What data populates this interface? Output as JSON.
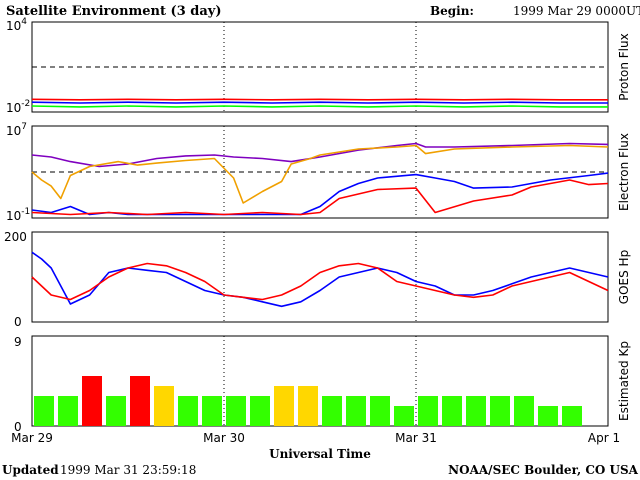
{
  "header": {
    "title": "Satellite Environment (3 day)",
    "begin_label": "Begin:",
    "begin_value": "1999 Mar 29 0000UT"
  },
  "footer": {
    "updated_label": "Updated",
    "updated_value": "1999 Mar 31 23:59:18",
    "credit": "NOAA/SEC Boulder, CO USA"
  },
  "x_axis": {
    "label": "Universal Time",
    "ticks": [
      "Mar 29",
      "Mar 30",
      "Mar 31",
      "Apr 1"
    ]
  },
  "colors": {
    "red": "#ff0000",
    "blue": "#0000ff",
    "green": "#00ff00",
    "purple": "#7f00bf",
    "orange": "#f0a000",
    "kp_green": "#33ff00",
    "kp_yellow": "#ffd700",
    "kp_red": "#ff0000"
  },
  "chart_data": [
    {
      "type": "line",
      "panel": "proton",
      "ylabel": "Proton Flux",
      "yscale": "log",
      "ylim": [
        0.01,
        10000
      ],
      "ytick_base": "10",
      "ytick_exp": [
        "4",
        "-2"
      ],
      "threshold": 10,
      "series": [
        {
          "color": "red",
          "x": [
            0,
            0.25,
            0.5,
            0.75,
            1.0,
            1.25,
            1.5,
            1.75,
            2.0,
            2.25,
            2.5,
            2.75,
            3.0
          ],
          "y": [
            0.07,
            0.065,
            0.07,
            0.065,
            0.07,
            0.065,
            0.07,
            0.065,
            0.07,
            0.065,
            0.07,
            0.065,
            0.065
          ]
        },
        {
          "color": "blue",
          "x": [
            0,
            0.25,
            0.5,
            0.75,
            1.0,
            1.25,
            1.5,
            1.75,
            2.0,
            2.25,
            2.5,
            2.75,
            3.0
          ],
          "y": [
            0.045,
            0.04,
            0.045,
            0.04,
            0.045,
            0.04,
            0.045,
            0.04,
            0.045,
            0.04,
            0.045,
            0.04,
            0.04
          ]
        },
        {
          "color": "green",
          "x": [
            0,
            0.25,
            0.5,
            0.75,
            1.0,
            1.25,
            1.5,
            1.75,
            2.0,
            2.25,
            2.5,
            2.75,
            3.0
          ],
          "y": [
            0.025,
            0.022,
            0.025,
            0.022,
            0.025,
            0.022,
            0.025,
            0.022,
            0.025,
            0.022,
            0.025,
            0.022,
            0.022
          ]
        }
      ]
    },
    {
      "type": "line",
      "panel": "electron",
      "ylabel": "Electron Flux",
      "yscale": "log",
      "ylim": [
        0.1,
        10000000
      ],
      "ytick_base": "10",
      "ytick_exp": [
        "7",
        "-1"
      ],
      "threshold": 1000,
      "series": [
        {
          "color": "purple",
          "x": [
            0,
            0.1,
            0.2,
            0.35,
            0.5,
            0.65,
            0.8,
            0.95,
            1.05,
            1.2,
            1.35,
            1.5,
            1.7,
            1.9,
            2.0,
            2.05,
            2.2,
            2.5,
            2.8,
            3.0
          ],
          "y": [
            30000,
            20000,
            8000,
            3000,
            5000,
            15000,
            25000,
            30000,
            20000,
            15000,
            8000,
            20000,
            80000,
            200000,
            300000,
            150000,
            150000,
            200000,
            300000,
            250000
          ]
        },
        {
          "color": "orange",
          "x": [
            0,
            0.05,
            0.1,
            0.15,
            0.2,
            0.3,
            0.45,
            0.55,
            0.65,
            0.8,
            0.95,
            1.05,
            1.1,
            1.2,
            1.3,
            1.35,
            1.45,
            1.5,
            1.7,
            1.9,
            2.0,
            2.05,
            2.2,
            2.5,
            2.8,
            3.0
          ],
          "y": [
            1000,
            200,
            60,
            5,
            500,
            3000,
            8000,
            4000,
            6000,
            10000,
            15000,
            300,
            2,
            20,
            150,
            5000,
            15000,
            30000,
            100000,
            150000,
            200000,
            40000,
            100000,
            150000,
            200000,
            150000
          ]
        },
        {
          "color": "blue",
          "x": [
            0,
            0.1,
            0.2,
            0.3,
            0.4,
            0.5,
            0.6,
            0.8,
            1.0,
            1.2,
            1.4,
            1.5,
            1.6,
            1.7,
            1.8,
            2.0,
            2.1,
            2.2,
            2.3,
            2.5,
            2.7,
            2.9,
            3.0
          ],
          "y": [
            0.5,
            0.3,
            1,
            0.2,
            0.3,
            0.2,
            0.2,
            0.2,
            0.2,
            0.2,
            0.2,
            1,
            20,
            100,
            300,
            600,
            300,
            150,
            40,
            50,
            200,
            500,
            800
          ]
        },
        {
          "color": "red",
          "x": [
            0,
            0.2,
            0.4,
            0.6,
            0.8,
            1.0,
            1.2,
            1.4,
            1.5,
            1.6,
            1.8,
            2.0,
            2.1,
            2.3,
            2.5,
            2.6,
            2.8,
            2.9,
            3.0
          ],
          "y": [
            0.3,
            0.2,
            0.3,
            0.2,
            0.3,
            0.2,
            0.3,
            0.2,
            0.3,
            5,
            30,
            40,
            0.3,
            3,
            10,
            50,
            200,
            80,
            100
          ]
        }
      ]
    },
    {
      "type": "line",
      "panel": "hp",
      "ylabel": "GOES Hp",
      "ylim": [
        0,
        200
      ],
      "yticks": [
        "200",
        "0"
      ],
      "series": [
        {
          "color": "blue",
          "x": [
            0,
            0.05,
            0.1,
            0.15,
            0.2,
            0.3,
            0.4,
            0.5,
            0.6,
            0.7,
            0.8,
            0.9,
            1.0,
            1.1,
            1.2,
            1.3,
            1.4,
            1.5,
            1.6,
            1.7,
            1.8,
            1.9,
            2.0,
            2.1,
            2.2,
            2.3,
            2.4,
            2.5,
            2.6,
            2.7,
            2.8,
            2.9,
            3.0
          ],
          "y": [
            155,
            140,
            120,
            80,
            40,
            60,
            110,
            120,
            115,
            110,
            90,
            70,
            60,
            55,
            45,
            35,
            45,
            70,
            100,
            110,
            120,
            110,
            90,
            80,
            60,
            60,
            70,
            85,
            100,
            110,
            120,
            110,
            100
          ]
        },
        {
          "color": "red",
          "x": [
            0,
            0.05,
            0.1,
            0.2,
            0.3,
            0.4,
            0.5,
            0.6,
            0.7,
            0.8,
            0.9,
            1.0,
            1.1,
            1.2,
            1.3,
            1.4,
            1.5,
            1.6,
            1.7,
            1.8,
            1.9,
            2.0,
            2.1,
            2.2,
            2.3,
            2.4,
            2.5,
            2.6,
            2.7,
            2.8,
            2.9,
            3.0
          ],
          "y": [
            100,
            80,
            60,
            50,
            70,
            100,
            120,
            130,
            125,
            110,
            90,
            60,
            55,
            50,
            60,
            80,
            110,
            125,
            130,
            120,
            90,
            80,
            70,
            60,
            55,
            60,
            80,
            90,
            100,
            110,
            90,
            70
          ]
        }
      ]
    },
    {
      "type": "bar",
      "panel": "kp",
      "ylabel": "Estimated Kp",
      "ylim": [
        0,
        9
      ],
      "yticks": [
        "9",
        "0"
      ],
      "values": [
        3,
        3,
        5,
        3,
        5,
        4,
        3,
        3,
        3,
        3,
        4,
        4,
        3,
        3,
        3,
        2,
        3,
        3,
        3,
        3,
        3,
        2,
        2
      ],
      "bar_colors": [
        "kp_green",
        "kp_green",
        "kp_red",
        "kp_green",
        "kp_red",
        "kp_yellow",
        "kp_green",
        "kp_green",
        "kp_green",
        "kp_green",
        "kp_yellow",
        "kp_yellow",
        "kp_green",
        "kp_green",
        "kp_green",
        "kp_green",
        "kp_green",
        "kp_green",
        "kp_green",
        "kp_green",
        "kp_green",
        "kp_green",
        "kp_green"
      ]
    }
  ]
}
